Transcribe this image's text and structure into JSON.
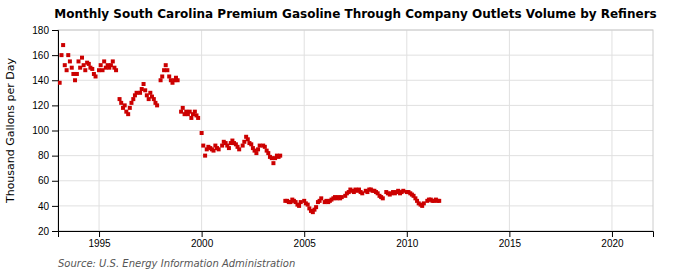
{
  "chart_data": {
    "type": "scatter",
    "title": "Monthly South Carolina Premium Gasoline Through Company Outlets Volume by Refiners",
    "ylabel": "Thousand Gallons per Day",
    "annotation": "Source: U.S. Energy Information Administration",
    "color": "#cc0000",
    "marker": "square",
    "grid": true,
    "xlim": [
      1993.0,
      2022.0
    ],
    "ylim": [
      20,
      180
    ],
    "xticks": [
      1995,
      2000,
      2005,
      2010,
      2015,
      2020
    ],
    "yticks": [
      20,
      40,
      60,
      80,
      100,
      120,
      140,
      160,
      180
    ],
    "x": [
      1993.08,
      1993.17,
      1993.25,
      1993.33,
      1993.42,
      1993.5,
      1993.58,
      1993.67,
      1993.75,
      1993.83,
      1993.92,
      1994.0,
      1994.08,
      1994.17,
      1994.25,
      1994.33,
      1994.42,
      1994.5,
      1994.58,
      1994.67,
      1994.75,
      1994.83,
      1995.0,
      1995.08,
      1995.17,
      1995.25,
      1995.33,
      1995.42,
      1995.5,
      1995.58,
      1995.67,
      1995.75,
      1995.83,
      1996.0,
      1996.08,
      1996.17,
      1996.25,
      1996.33,
      1996.42,
      1996.5,
      1996.58,
      1996.67,
      1996.75,
      1996.83,
      1997.0,
      1997.08,
      1997.17,
      1997.25,
      1997.33,
      1997.42,
      1997.5,
      1997.58,
      1997.67,
      1997.75,
      1997.83,
      1998.0,
      1998.08,
      1998.17,
      1998.25,
      1998.33,
      1998.42,
      1998.5,
      1998.58,
      1998.67,
      1998.75,
      1998.83,
      1999.0,
      1999.08,
      1999.17,
      1999.25,
      1999.33,
      1999.42,
      1999.5,
      1999.58,
      1999.67,
      1999.75,
      1999.83,
      2000.0,
      2000.08,
      2000.17,
      2000.25,
      2000.33,
      2000.42,
      2000.5,
      2000.58,
      2000.67,
      2000.75,
      2000.83,
      2001.0,
      2001.08,
      2001.17,
      2001.25,
      2001.33,
      2001.42,
      2001.5,
      2001.58,
      2001.67,
      2001.75,
      2001.83,
      2002.0,
      2002.08,
      2002.17,
      2002.25,
      2002.33,
      2002.42,
      2002.5,
      2002.58,
      2002.67,
      2002.75,
      2002.83,
      2003.0,
      2003.08,
      2003.17,
      2003.25,
      2003.33,
      2003.42,
      2003.5,
      2003.58,
      2003.67,
      2003.75,
      2003.83,
      2004.08,
      2004.17,
      2004.25,
      2004.33,
      2004.42,
      2004.5,
      2004.58,
      2004.67,
      2004.75,
      2004.83,
      2005.0,
      2005.08,
      2005.17,
      2005.25,
      2005.33,
      2005.42,
      2005.5,
      2005.58,
      2005.67,
      2005.75,
      2005.83,
      2006.0,
      2006.08,
      2006.17,
      2006.25,
      2006.33,
      2006.42,
      2006.5,
      2006.58,
      2006.67,
      2006.75,
      2006.83,
      2007.0,
      2007.08,
      2007.17,
      2007.25,
      2007.33,
      2007.42,
      2007.5,
      2007.58,
      2007.67,
      2007.75,
      2007.83,
      2008.0,
      2008.08,
      2008.17,
      2008.25,
      2008.33,
      2008.42,
      2008.5,
      2008.58,
      2008.67,
      2008.75,
      2008.83,
      2009.0,
      2009.08,
      2009.17,
      2009.25,
      2009.33,
      2009.42,
      2009.5,
      2009.58,
      2009.67,
      2009.75,
      2009.83,
      2010.0,
      2010.08,
      2010.17,
      2010.25,
      2010.33,
      2010.42,
      2010.5,
      2010.58,
      2010.67,
      2010.75,
      2010.83,
      2011.0,
      2011.08,
      2011.17,
      2011.25,
      2011.33,
      2011.42,
      2011.5,
      2011.58
    ],
    "values": [
      138,
      160,
      168,
      152,
      148,
      160,
      155,
      150,
      145,
      140,
      145,
      155,
      150,
      158,
      152,
      148,
      154,
      153,
      150,
      149,
      145,
      143,
      148,
      152,
      148,
      155,
      150,
      152,
      150,
      152,
      155,
      150,
      148,
      125,
      122,
      118,
      120,
      115,
      113,
      118,
      122,
      125,
      128,
      130,
      130,
      133,
      137,
      132,
      128,
      125,
      130,
      127,
      125,
      122,
      120,
      140,
      143,
      148,
      152,
      148,
      143,
      140,
      138,
      140,
      142,
      140,
      115,
      118,
      113,
      115,
      113,
      115,
      110,
      113,
      115,
      112,
      110,
      98,
      88,
      80,
      85,
      87,
      86,
      85,
      84,
      88,
      86,
      85,
      88,
      91,
      90,
      88,
      86,
      90,
      92,
      90,
      89,
      87,
      85,
      88,
      91,
      95,
      93,
      90,
      89,
      86,
      84,
      82,
      85,
      88,
      88,
      87,
      84,
      82,
      79,
      78,
      74,
      78,
      80,
      79,
      80,
      44,
      44,
      43,
      43,
      45,
      44,
      43,
      41,
      40,
      43,
      44,
      42,
      41,
      38,
      36,
      35,
      37,
      39,
      43,
      44,
      46,
      43,
      44,
      43,
      44,
      45,
      46,
      47,
      46,
      47,
      46,
      47,
      48,
      50,
      51,
      53,
      52,
      51,
      53,
      52,
      53,
      51,
      50,
      52,
      51,
      53,
      53,
      52,
      52,
      51,
      50,
      48,
      47,
      46,
      51,
      50,
      49,
      50,
      51,
      50,
      51,
      52,
      50,
      51,
      52,
      51,
      51,
      50,
      49,
      48,
      46,
      44,
      42,
      41,
      40,
      42,
      44,
      45,
      45,
      44,
      44,
      45,
      44,
      44
    ]
  }
}
